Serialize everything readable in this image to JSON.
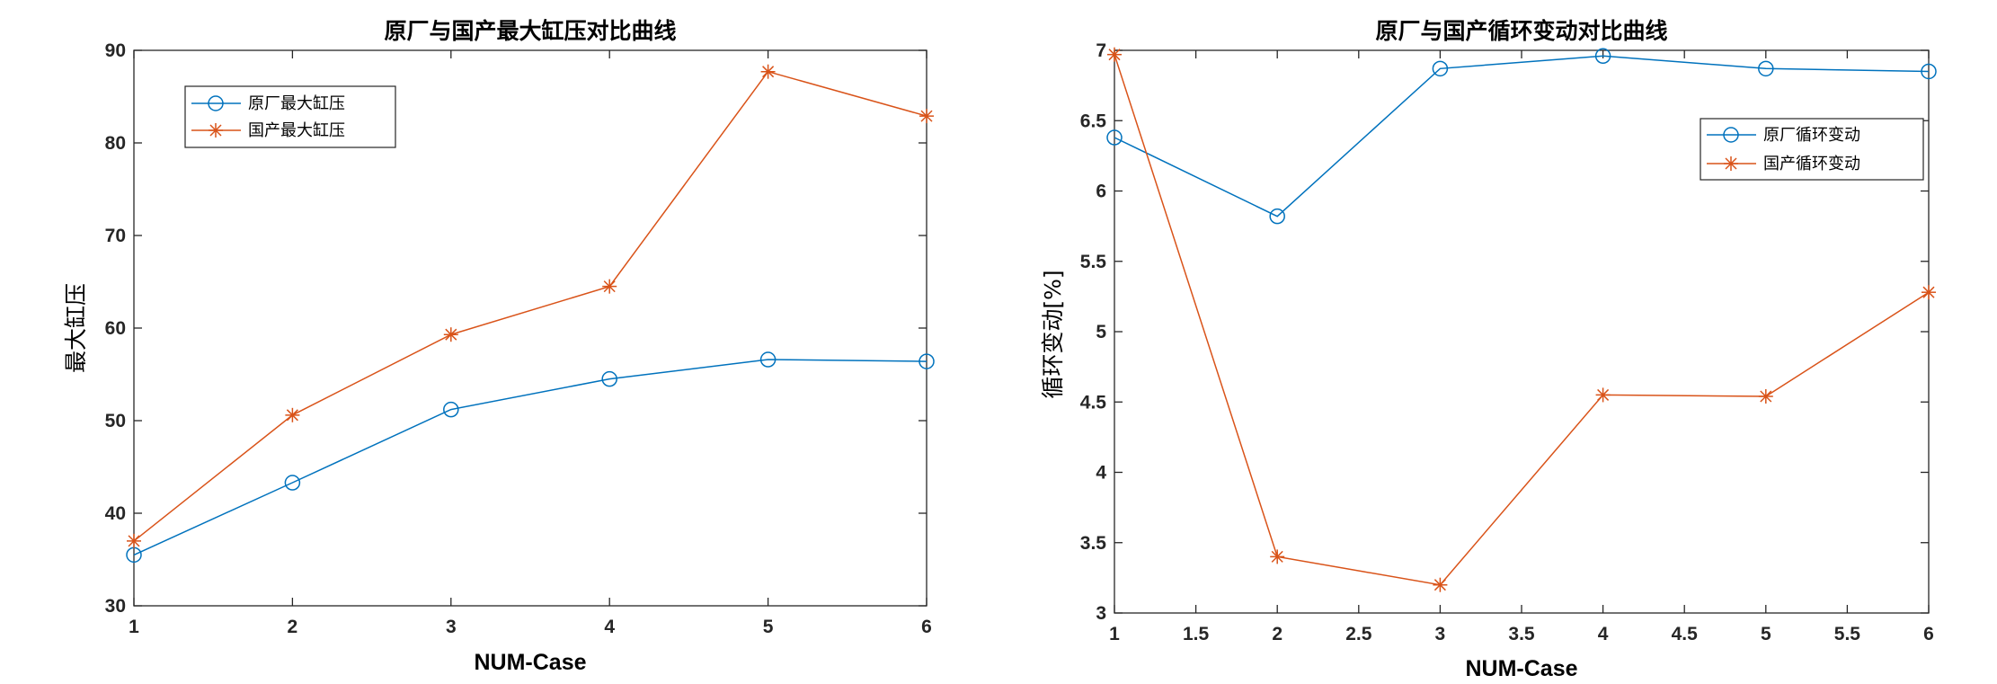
{
  "colors": {
    "blue": "#0072BD",
    "orange": "#D95319",
    "axis": "#262626"
  },
  "chart_data": [
    {
      "type": "line",
      "title": "原厂与国产最大缸压对比曲线",
      "xlabel": "NUM-Case",
      "ylabel": "最大缸压",
      "xlim": [
        1,
        6
      ],
      "ylim": [
        30,
        90
      ],
      "xticks": [
        "1",
        "2",
        "3",
        "4",
        "5",
        "6"
      ],
      "yticks": [
        "30",
        "40",
        "50",
        "60",
        "70",
        "80",
        "90"
      ],
      "grid": false,
      "legend_position": "top-left",
      "x": [
        1,
        2,
        3,
        4,
        5,
        6
      ],
      "series": [
        {
          "name": "原厂最大缸压",
          "marker": "circle",
          "color": "#0072BD",
          "values": [
            35.5,
            43.3,
            51.2,
            54.5,
            56.6,
            56.4
          ]
        },
        {
          "name": "国产最大缸压",
          "marker": "asterisk",
          "color": "#D95319",
          "values": [
            37.0,
            50.6,
            59.3,
            64.5,
            87.7,
            82.9
          ]
        }
      ]
    },
    {
      "type": "line",
      "title": "原厂与国产循环变动对比曲线",
      "xlabel": "NUM-Case",
      "ylabel": "循环变动[%]",
      "xlim": [
        1,
        6
      ],
      "ylim": [
        3,
        7
      ],
      "xticks": [
        "1",
        "1.5",
        "2",
        "2.5",
        "3",
        "3.5",
        "4",
        "4.5",
        "5",
        "5.5",
        "6"
      ],
      "yticks": [
        "3",
        "3.5",
        "4",
        "4.5",
        "5",
        "5.5",
        "6",
        "6.5",
        "7"
      ],
      "grid": false,
      "legend_position": "top-right",
      "x": [
        1,
        2,
        3,
        4,
        5,
        6
      ],
      "series": [
        {
          "name": "原厂循环变动",
          "marker": "circle",
          "color": "#0072BD",
          "values": [
            6.38,
            5.82,
            6.87,
            6.96,
            6.87,
            6.85
          ]
        },
        {
          "name": "国产循环变动",
          "marker": "asterisk",
          "color": "#D95319",
          "values": [
            6.97,
            3.4,
            3.2,
            4.55,
            4.54,
            5.28
          ]
        }
      ]
    }
  ]
}
